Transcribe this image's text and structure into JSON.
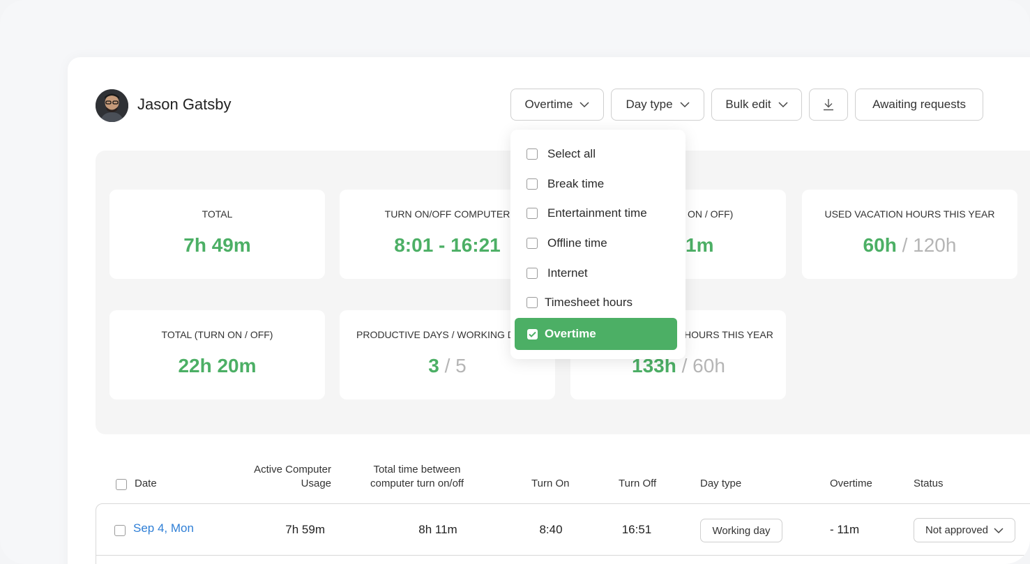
{
  "user": {
    "name": "Jason Gatsby"
  },
  "toolbar": {
    "overtime_label": "Overtime",
    "day_type_label": "Day type",
    "bulk_edit_label": "Bulk edit",
    "download_icon": "download-icon",
    "awaiting_label": "Awaiting requests"
  },
  "dropdown": {
    "items": [
      {
        "label": "Select all",
        "checked": false
      },
      {
        "label": "Break time",
        "checked": false
      },
      {
        "label": "Entertainment time",
        "checked": false
      },
      {
        "label": "Offline time",
        "checked": false
      },
      {
        "label": "Internet",
        "checked": false
      },
      {
        "label": "Timesheet hours",
        "checked": false
      },
      {
        "label": "Overtime",
        "checked": true
      }
    ]
  },
  "stats": {
    "total": {
      "label": "TOTAL",
      "value": "7h 49m"
    },
    "turn_on_off": {
      "label": "TURN ON/OFF COMPUTER",
      "value": "8:01 - 16:21"
    },
    "card3": {
      "label_visible": "ON / OFF)",
      "value_visible": "1m"
    },
    "vacation": {
      "label": "USED VACATION HOURS THIS YEAR",
      "value_main": "60h",
      "value_sep": "/",
      "value_total": "120h"
    },
    "total_turn": {
      "label": "TOTAL (TURN ON / OFF)",
      "value": "22h 20m"
    },
    "productive": {
      "label": "PRODUCTIVE DAYS / WORKING D",
      "value_main": "3",
      "value_sep": "/",
      "value_total": "5"
    },
    "card7": {
      "label_visible": "HOURS THIS YEAR",
      "value_main": "133h",
      "value_sep": "/",
      "value_total": "60h"
    }
  },
  "table": {
    "headers": {
      "date": "Date",
      "active_1": "Active Computer",
      "active_2": "Usage",
      "total_1": "Total time between",
      "total_2": "computer turn on/off",
      "turn_on": "Turn On",
      "turn_off": "Turn Off",
      "day_type": "Day type",
      "overtime": "Overtime",
      "status": "Status"
    },
    "rows": [
      {
        "date": "Sep 4, Mon",
        "active": "7h 59m",
        "total": "8h 11m",
        "turn_on": "8:40",
        "turn_off": "16:51",
        "day_type": "Working day",
        "overtime": "- 11m",
        "status": "Not approved"
      }
    ]
  },
  "colors": {
    "accent": "#4caf65",
    "link": "#2f7fd6"
  }
}
